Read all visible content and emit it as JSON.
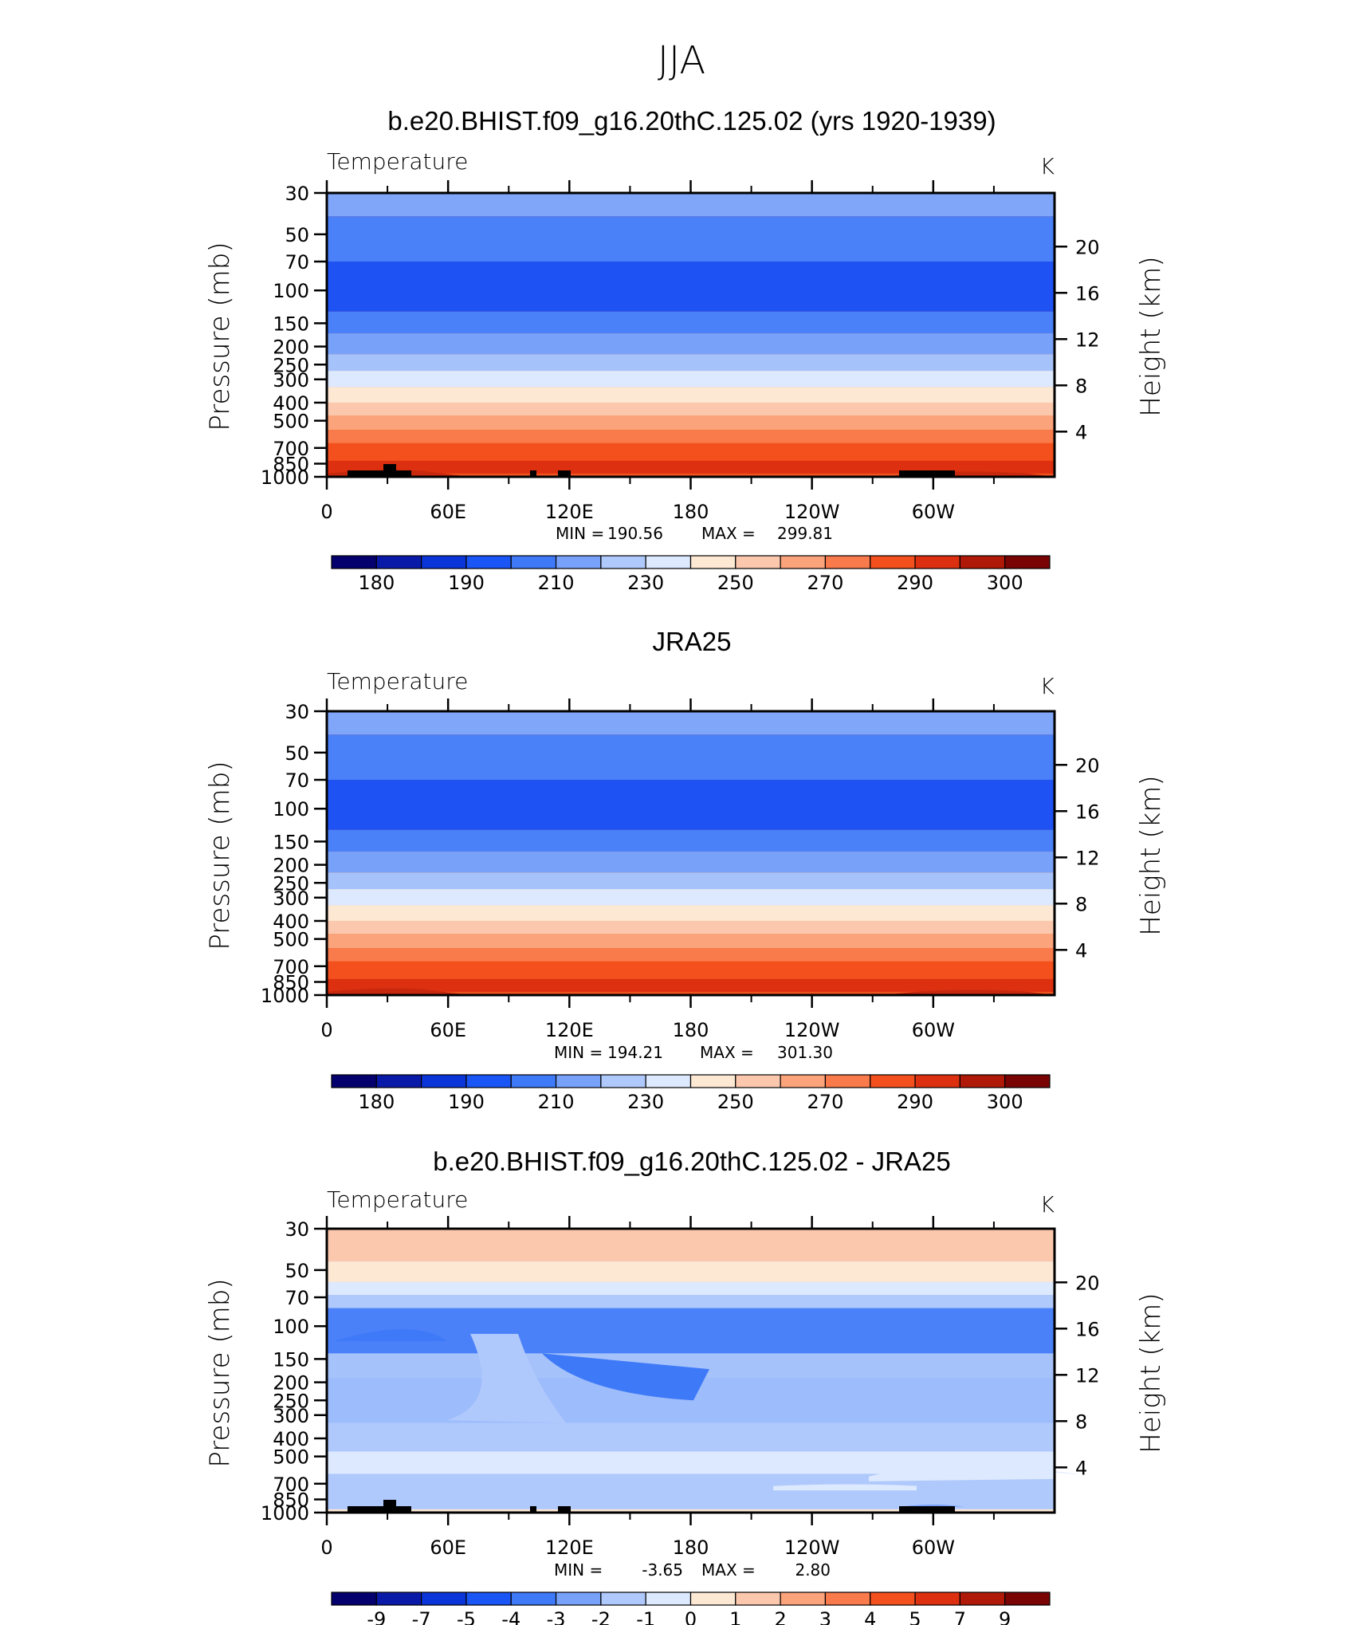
{
  "figure_title": "JJA",
  "chart_data": [
    {
      "type": "heatmap",
      "title": "b.e20.BHIST.f09_g16.20thC.125.02 (yrs 1920-1939)",
      "left_label": "Temperature",
      "units": "K",
      "xlabel": "",
      "ylabel": "Pressure (mb)",
      "ylabel_right": "Height (km)",
      "x_ticks": [
        "0",
        "60E",
        "120E",
        "180",
        "120W",
        "60W"
      ],
      "y_ticks": [
        "30",
        "50",
        "70",
        "100",
        "150",
        "200",
        "250",
        "300",
        "400",
        "500",
        "700",
        "850",
        "1000"
      ],
      "y_ticks_right": [
        "20",
        "16",
        "12",
        "8",
        "4"
      ],
      "min_label": "MIN =",
      "min_value": "190.56",
      "max_label": "MAX =",
      "max_value": "299.81",
      "colorbar_labels": [
        "180",
        "190",
        "210",
        "230",
        "250",
        "270",
        "290",
        "300"
      ],
      "colorbar_colors": [
        "#04016f",
        "#0a1aa8",
        "#0a35d8",
        "#1a55f5",
        "#3e79f8",
        "#78a2fa",
        "#b0c9fc",
        "#dce9fe",
        "#fde8d4",
        "#fcc8ad",
        "#fba37b",
        "#f97a4b",
        "#f3501e",
        "#dc3010",
        "#b01808",
        "#7a0404"
      ]
    },
    {
      "type": "heatmap",
      "title": "JRA25",
      "left_label": "Temperature",
      "units": "K",
      "xlabel": "",
      "ylabel": "Pressure (mb)",
      "ylabel_right": "Height (km)",
      "x_ticks": [
        "0",
        "60E",
        "120E",
        "180",
        "120W",
        "60W"
      ],
      "y_ticks": [
        "30",
        "50",
        "70",
        "100",
        "150",
        "200",
        "250",
        "300",
        "400",
        "500",
        "700",
        "850",
        "1000"
      ],
      "y_ticks_right": [
        "20",
        "16",
        "12",
        "8",
        "4"
      ],
      "min_label": "MIN =",
      "min_value": "194.21",
      "max_label": "MAX =",
      "max_value": "301.30",
      "colorbar_labels": [
        "180",
        "190",
        "210",
        "230",
        "250",
        "270",
        "290",
        "300"
      ],
      "colorbar_colors": [
        "#04016f",
        "#0a1aa8",
        "#0a35d8",
        "#1a55f5",
        "#3e79f8",
        "#78a2fa",
        "#b0c9fc",
        "#dce9fe",
        "#fde8d4",
        "#fcc8ad",
        "#fba37b",
        "#f97a4b",
        "#f3501e",
        "#dc3010",
        "#b01808",
        "#7a0404"
      ]
    },
    {
      "type": "heatmap",
      "title": "b.e20.BHIST.f09_g16.20thC.125.02 - JRA25",
      "left_label": "Temperature",
      "units": "K",
      "xlabel": "",
      "ylabel": "Pressure (mb)",
      "ylabel_right": "Height (km)",
      "x_ticks": [
        "0",
        "60E",
        "120E",
        "180",
        "120W",
        "60W"
      ],
      "y_ticks": [
        "30",
        "50",
        "70",
        "100",
        "150",
        "200",
        "250",
        "300",
        "400",
        "500",
        "700",
        "850",
        "1000"
      ],
      "y_ticks_right": [
        "20",
        "16",
        "12",
        "8",
        "4"
      ],
      "min_label": "MIN =",
      "min_value": "-3.65",
      "max_label": "MAX =",
      "max_value": "2.80",
      "colorbar_labels": [
        "-9",
        "-7",
        "-5",
        "-4",
        "-3",
        "-2",
        "-1",
        "0",
        "1",
        "2",
        "3",
        "4",
        "5",
        "7",
        "9"
      ],
      "colorbar_colors": [
        "#04016f",
        "#0a1aa8",
        "#0a35d8",
        "#1a55f5",
        "#3e79f8",
        "#78a2fa",
        "#b0c9fc",
        "#dce9fe",
        "#fde8d4",
        "#fcc8ad",
        "#fba37b",
        "#f97a4b",
        "#f3501e",
        "#dc3010",
        "#b01808",
        "#7a0404"
      ]
    }
  ]
}
